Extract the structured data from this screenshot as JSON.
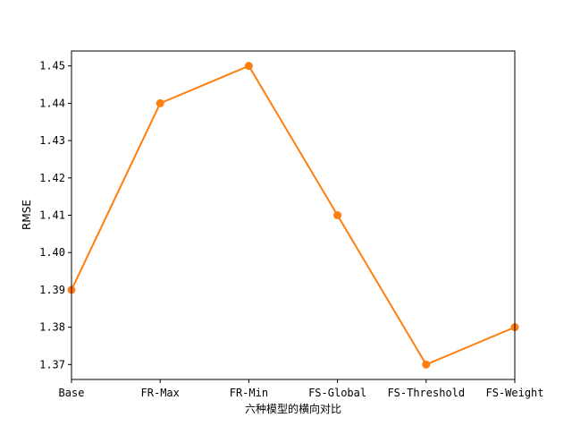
{
  "chart_data": {
    "type": "line",
    "categories": [
      "Base",
      "FR-Max",
      "FR-Min",
      "FS-Global",
      "FS-Threshold",
      "FS-Weight"
    ],
    "series": [
      {
        "values": [
          1.39,
          1.44,
          1.45,
          1.41,
          1.37,
          1.38
        ],
        "color": "#ff7f0e"
      }
    ],
    "title": "",
    "xlabel": "六种模型的横向对比",
    "ylabel": "RMSE",
    "yticks": [
      "1.37",
      "1.38",
      "1.39",
      "1.40",
      "1.41",
      "1.42",
      "1.43",
      "1.44",
      "1.45"
    ],
    "ylim": [
      1.366,
      1.454
    ],
    "grid": false,
    "line_color": "#ff7f0e",
    "marker": "circle"
  }
}
